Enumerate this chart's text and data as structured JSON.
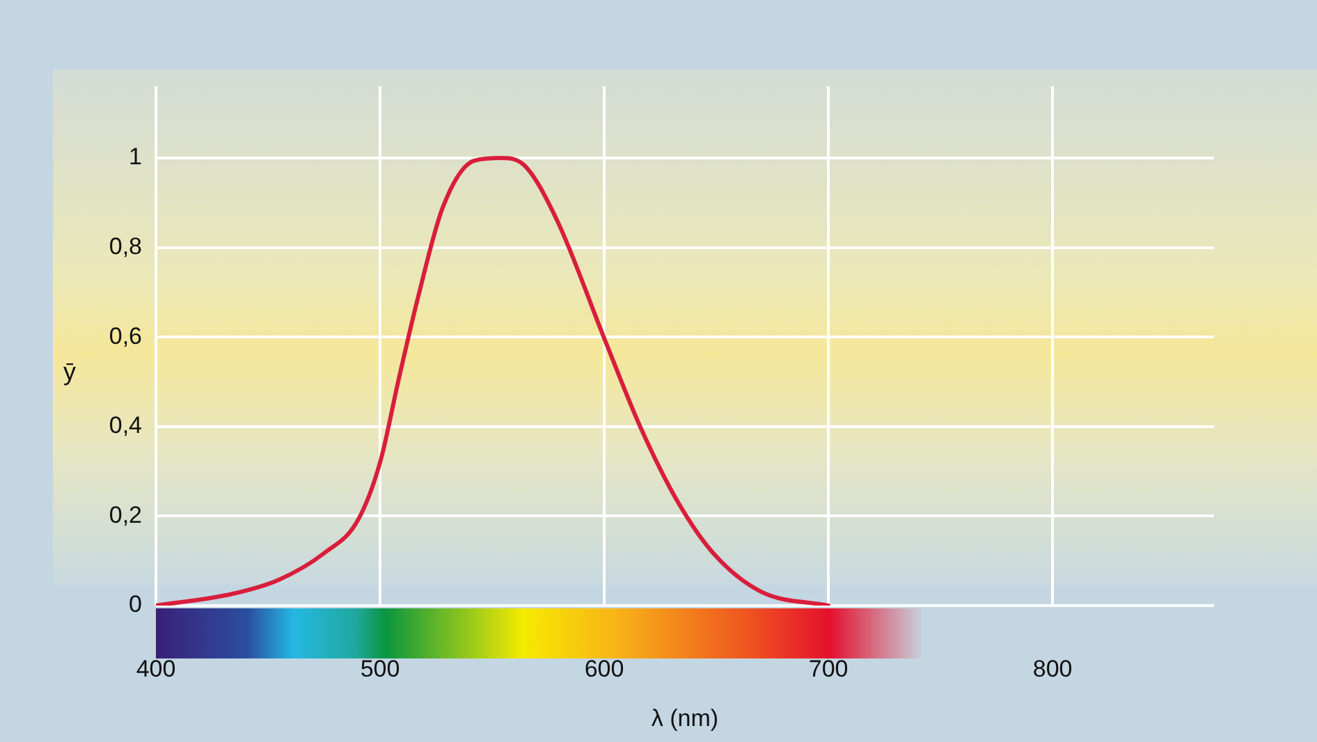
{
  "chart_data": {
    "type": "line",
    "xlabel": "λ (nm)",
    "ylabel": "ȳ",
    "series": [
      {
        "color": "#d91e3c",
        "x": [
          400,
          434,
          455,
          475,
          490,
          500,
          508.5,
          517,
          528,
          542,
          554,
          564,
          579,
          600,
          616,
          633,
          649,
          670,
          700
        ],
        "values": [
          0,
          0.026,
          0.058,
          0.117,
          0.19,
          0.32,
          0.51,
          0.69,
          0.89,
          0.994,
          1,
          0.985,
          0.86,
          0.597,
          0.4,
          0.23,
          0.115,
          0.031,
          0
        ]
      }
    ],
    "xlim": [
      400,
      872
    ],
    "xticks": [
      400,
      500,
      600,
      700,
      800
    ],
    "ylim": [
      0,
      1.16
    ],
    "yticks": [
      {
        "value": 0,
        "label": "0"
      },
      {
        "value": 0.2,
        "label": "0,2"
      },
      {
        "value": 0.4,
        "label": "0,4"
      },
      {
        "value": 0.6,
        "label": "0,6"
      },
      {
        "value": 0.8,
        "label": "0,8"
      },
      {
        "value": 1,
        "label": "1"
      }
    ],
    "grid": true,
    "legend": false,
    "marker": "none",
    "line_style": "solid"
  }
}
